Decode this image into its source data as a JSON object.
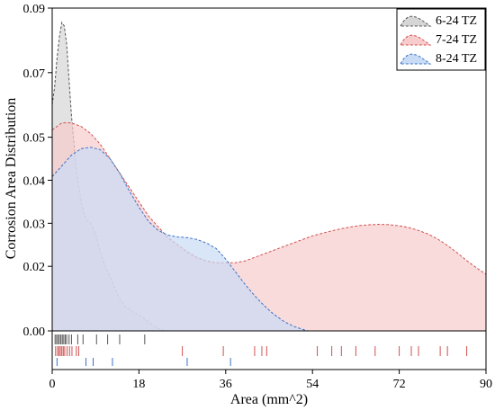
{
  "chart_data": {
    "type": "area",
    "xlabel": "Area (mm^2)",
    "ylabel": "Corrosion Area Distribution",
    "xlim": [
      0,
      90
    ],
    "ylim": [
      0,
      0.09
    ],
    "x_ticks": [
      "0",
      "18",
      "36",
      "54",
      "72",
      "90"
    ],
    "y_ticks": [
      "0.00",
      "0.02",
      "0.03",
      "0.04",
      "0.05",
      "0.07",
      "0.09"
    ],
    "y_tick_values": [
      0,
      0.018,
      0.03,
      0.042,
      0.054,
      0.072,
      0.09
    ],
    "legend_position": "top-right",
    "series": [
      {
        "name": "6-24 TZ",
        "fill": "#d6d6d6",
        "stroke": "#555555",
        "x": [
          0,
          0.5,
          1,
          1.5,
          2,
          2.5,
          3,
          3.5,
          4,
          5,
          6,
          7,
          8,
          9,
          10,
          11,
          12,
          13,
          14,
          15,
          16,
          17,
          18,
          19,
          20,
          21,
          22,
          23,
          24
        ],
        "y": [
          0.063,
          0.068,
          0.076,
          0.082,
          0.086,
          0.085,
          0.08,
          0.07,
          0.06,
          0.045,
          0.036,
          0.031,
          0.03,
          0.027,
          0.022,
          0.018,
          0.015,
          0.012,
          0.009,
          0.007,
          0.006,
          0.005,
          0.0045,
          0.0035,
          0.0025,
          0.0015,
          0.0007,
          0.0002,
          0
        ],
        "rug": [
          0.6,
          0.9,
          1.2,
          1.5,
          1.8,
          2.1,
          2.4,
          2.7,
          3.0,
          3.5,
          4.0,
          5.3,
          6.4,
          9.2,
          11.5,
          14.0,
          19.2
        ]
      },
      {
        "name": "7-24 TZ",
        "fill": "#f8cccc",
        "stroke": "#d05050",
        "x": [
          0,
          2,
          4,
          6,
          8,
          10,
          12,
          14,
          16,
          18,
          20,
          22,
          24,
          26,
          28,
          30,
          32,
          34,
          36,
          38,
          40,
          42,
          44,
          46,
          48,
          50,
          52,
          54,
          56,
          58,
          60,
          62,
          64,
          66,
          68,
          70,
          72,
          74,
          76,
          78,
          80,
          82,
          84,
          86,
          88,
          90
        ],
        "y": [
          0.056,
          0.058,
          0.058,
          0.057,
          0.055,
          0.052,
          0.048,
          0.044,
          0.04,
          0.036,
          0.032,
          0.029,
          0.026,
          0.024,
          0.022,
          0.0205,
          0.0195,
          0.019,
          0.019,
          0.019,
          0.0195,
          0.0205,
          0.0215,
          0.0225,
          0.0235,
          0.0245,
          0.0255,
          0.0265,
          0.0272,
          0.0279,
          0.0285,
          0.029,
          0.0294,
          0.0296,
          0.0297,
          0.0296,
          0.0293,
          0.0288,
          0.028,
          0.027,
          0.0256,
          0.0238,
          0.0218,
          0.0196,
          0.0176,
          0.0158
        ],
        "rug": [
          0.7,
          1.1,
          1.4,
          1.7,
          2.0,
          2.3,
          2.6,
          3.1,
          3.6,
          4.1,
          5.0,
          5.5,
          27.0,
          35.5,
          42.0,
          43.5,
          44.5,
          55.0,
          58.0,
          60.0,
          63.0,
          67.0,
          72.0,
          74.5,
          76.0,
          80.5,
          82.0,
          86.0
        ]
      },
      {
        "name": "8-24 TZ",
        "fill": "#c9dcf5",
        "stroke": "#3a70c8",
        "x": [
          0,
          2,
          4,
          6,
          8,
          10,
          12,
          14,
          16,
          18,
          20,
          22,
          24,
          26,
          28,
          30,
          32,
          34,
          36,
          38,
          40,
          42,
          44,
          46,
          48,
          50,
          52,
          53
        ],
        "y": [
          0.043,
          0.046,
          0.049,
          0.0508,
          0.0512,
          0.0505,
          0.048,
          0.044,
          0.039,
          0.0345,
          0.0305,
          0.028,
          0.0267,
          0.0262,
          0.026,
          0.0255,
          0.0245,
          0.023,
          0.02,
          0.0165,
          0.013,
          0.0098,
          0.007,
          0.0046,
          0.0027,
          0.0013,
          0.0004,
          0
        ],
        "rug": [
          1.0,
          7.0,
          8.5,
          12.5,
          28.0,
          37.0
        ]
      }
    ]
  }
}
